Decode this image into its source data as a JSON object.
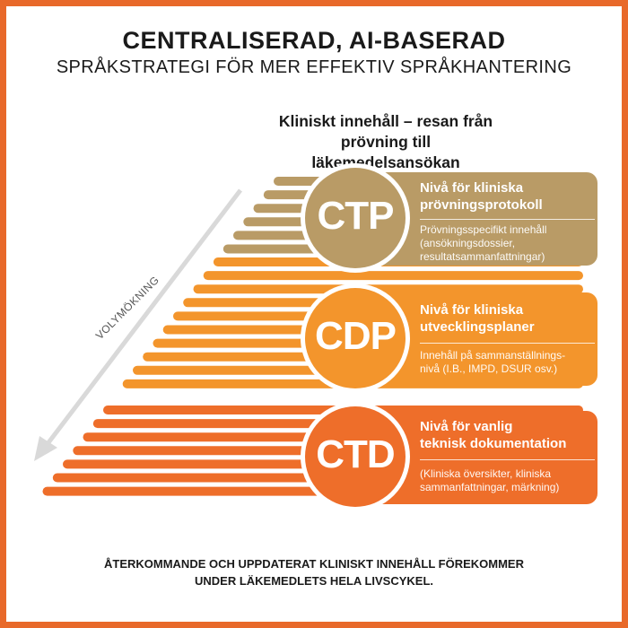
{
  "title": "CENTRALISERAD, AI-BASERAD",
  "subtitle": "SPRÅKSTRATEGI FÖR MER EFFEKTIV SPRÅKHANTERING",
  "section_heading_line1": "Kliniskt innehåll – resan från",
  "section_heading_line2": "prövning till läkemedelsansökan",
  "volume_label": "VOLYMÖKNING",
  "colors": {
    "frame": "#e8692a",
    "ctp": "#b99b66",
    "cdp": "#f3952c",
    "ctd": "#ee6e2a"
  },
  "levels": [
    {
      "code": "CTP",
      "title_line1": "Nivå för kliniska",
      "title_line2": "prövningsprotokoll",
      "desc_lines": [
        "Prövningsspecifikt innehåll",
        "(ansökningsdossier,",
        "resultatsammanfattningar)"
      ]
    },
    {
      "code": "CDP",
      "title_line1": "Nivå för kliniska",
      "title_line2": "utvecklingsplaner",
      "desc_lines": [
        "Innehåll på sammanställnings-",
        "nivå (I.B., IMPD, DSUR osv.)"
      ]
    },
    {
      "code": "CTD",
      "title_line1": "Nivå för vanlig",
      "title_line2": "teknisk dokumentation",
      "desc_lines": [
        "(Kliniska översikter, kliniska",
        "sammanfattningar, märkning)"
      ]
    }
  ],
  "footer_line1": "ÅTERKOMMANDE OCH UPPDATERAT KLINISKT INNEHÅLL FÖREKOMMER",
  "footer_line2": "UNDER LÄKEMEDLETS HELA LIVSCYKEL."
}
